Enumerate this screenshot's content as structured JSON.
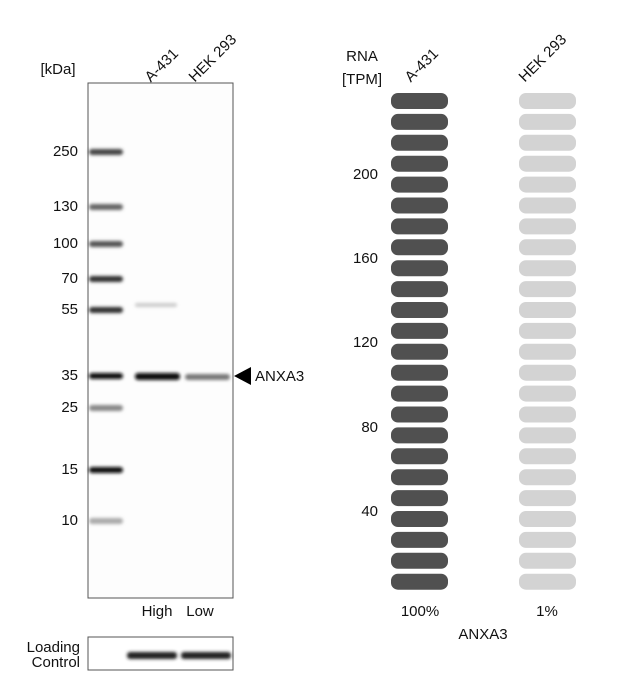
{
  "blot": {
    "unit_label": "[kDa]",
    "lanes": [
      "A-431",
      "HEK 293"
    ],
    "markers": [
      250,
      130,
      100,
      70,
      55,
      35,
      25,
      15,
      10
    ],
    "target": "ANXA3",
    "levels": [
      "High",
      "Low"
    ],
    "loading_control": [
      "Loading",
      "Control"
    ]
  },
  "rna": {
    "axis_title": [
      "RNA",
      "[TPM]"
    ],
    "lanes": [
      "A-431",
      "HEK 293"
    ],
    "ticks": [
      200,
      160,
      120,
      80,
      40
    ],
    "percentages": [
      "100%",
      "1%"
    ],
    "gene": "ANXA3"
  }
}
